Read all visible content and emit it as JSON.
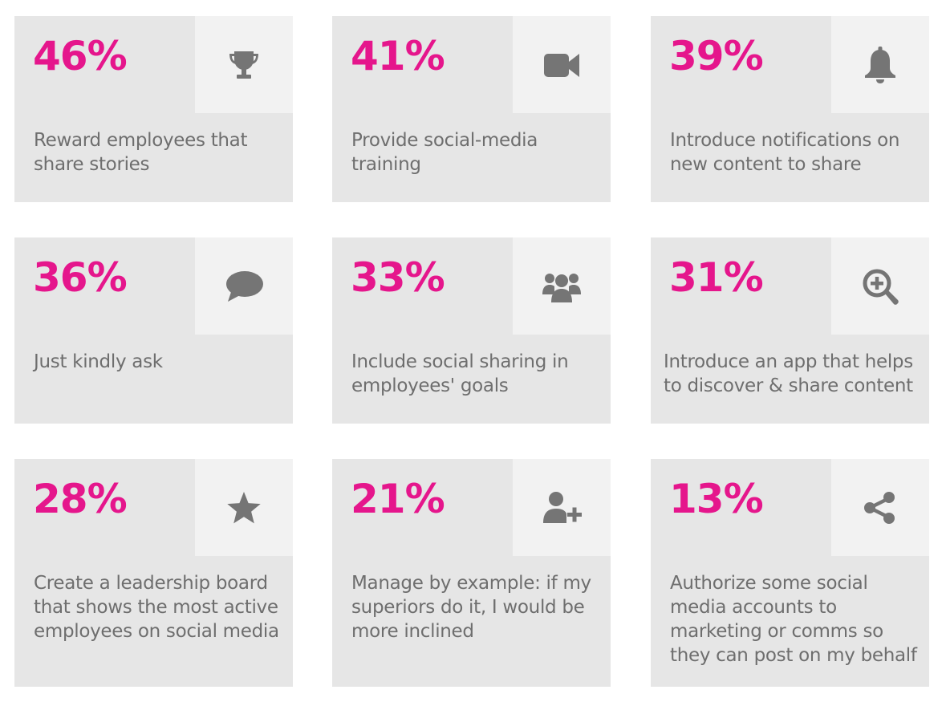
{
  "accent_color": "#e5168c",
  "icon_color": "#757575",
  "cards": [
    {
      "percent": "46%",
      "label": "Reward employees that share stories",
      "icon": "trophy-icon"
    },
    {
      "percent": "41%",
      "label": "Provide social-media training",
      "icon": "video-camera-icon"
    },
    {
      "percent": "39%",
      "label": "Introduce notifications on new content to share",
      "icon": "bell-icon"
    },
    {
      "percent": "36%",
      "label": "Just kindly ask",
      "icon": "speech-bubble-icon"
    },
    {
      "percent": "33%",
      "label": "Include social sharing in employees' goals",
      "icon": "group-icon"
    },
    {
      "percent": "31%",
      "label": "Introduce an app that helps to discover & share content",
      "icon": "zoom-in-icon"
    },
    {
      "percent": "28%",
      "label": "Create a leadership board that shows the most active employees on social media",
      "icon": "star-icon"
    },
    {
      "percent": "21%",
      "label": "Manage by example: if my superiors do it, I would be more inclined",
      "icon": "add-user-icon"
    },
    {
      "percent": "13%",
      "label": "Authorize some social media accounts to marketing or comms so they can post on my behalf",
      "icon": "share-icon"
    }
  ]
}
